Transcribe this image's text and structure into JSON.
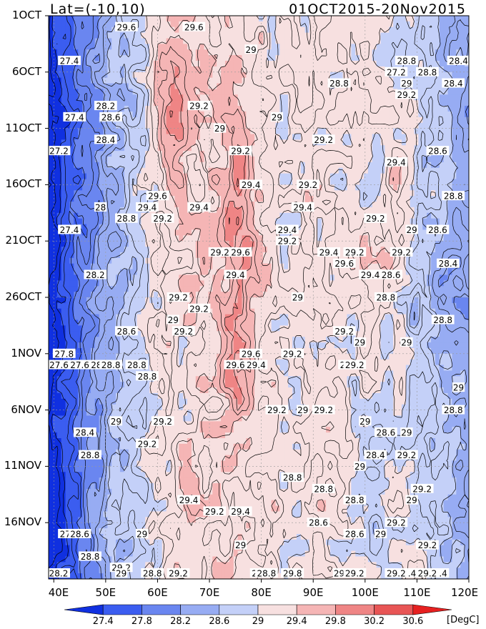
{
  "chart_data": {
    "type": "heatmap",
    "title_left": "Lat=(-10,10)",
    "title_right": "01OCT2015-20Nov2015",
    "x_ticks": [
      "40E",
      "50E",
      "60E",
      "70E",
      "80E",
      "90E",
      "100E",
      "110E",
      "120E"
    ],
    "y_ticks": [
      "1OCT",
      "6OCT",
      "11OCT",
      "16OCT",
      "21OCT",
      "26OCT",
      "1NOV",
      "6NOV",
      "11NOV",
      "16NOV"
    ],
    "xlim": [
      "39E",
      "120E"
    ],
    "ylim": [
      "01OCT2015",
      "20NOV2015"
    ],
    "colorbar": {
      "levels": [
        "27.4",
        "27.8",
        "28.2",
        "28.6",
        "29",
        "29.4",
        "29.8",
        "30.2",
        "30.6"
      ],
      "unit": "[DegC]",
      "colors": [
        "#1030e0",
        "#3b5df0",
        "#6a86f0",
        "#97acf3",
        "#c4d0f8",
        "#f7e0e0",
        "#f5b5b5",
        "#ef8585",
        "#e85555",
        "#e62020"
      ]
    },
    "contour_labels": [
      {
        "lon": 54,
        "day": 1,
        "text": "29.6"
      },
      {
        "lon": 67,
        "day": 1,
        "text": "29.6"
      },
      {
        "lon": 78,
        "day": 3,
        "text": "29"
      },
      {
        "lon": 43,
        "day": 4,
        "text": "27.4"
      },
      {
        "lon": 108,
        "day": 4,
        "text": "28.8"
      },
      {
        "lon": 112,
        "day": 5,
        "text": "28.8"
      },
      {
        "lon": 118,
        "day": 4,
        "text": "28.4"
      },
      {
        "lon": 106,
        "day": 5,
        "text": "27.2"
      },
      {
        "lon": 95,
        "day": 6,
        "text": "28.8"
      },
      {
        "lon": 108,
        "day": 6,
        "text": "29"
      },
      {
        "lon": 117,
        "day": 6,
        "text": "28.4"
      },
      {
        "lon": 108,
        "day": 7,
        "text": "29.2"
      },
      {
        "lon": 50,
        "day": 8,
        "text": "28.2"
      },
      {
        "lon": 68,
        "day": 8,
        "text": "29.2"
      },
      {
        "lon": 44,
        "day": 9,
        "text": "27.4"
      },
      {
        "lon": 51,
        "day": 9,
        "text": "28.6"
      },
      {
        "lon": 83,
        "day": 9,
        "text": "29"
      },
      {
        "lon": 72,
        "day": 10,
        "text": "29"
      },
      {
        "lon": 50,
        "day": 11,
        "text": "28.4"
      },
      {
        "lon": 92,
        "day": 11,
        "text": "29.2"
      },
      {
        "lon": 41,
        "day": 12,
        "text": "27.2"
      },
      {
        "lon": 76,
        "day": 12,
        "text": "29.2"
      },
      {
        "lon": 114,
        "day": 12,
        "text": "28.6"
      },
      {
        "lon": 106,
        "day": 13,
        "text": "29.4"
      },
      {
        "lon": 89,
        "day": 15,
        "text": "29.2"
      },
      {
        "lon": 78,
        "day": 15,
        "text": "29.4"
      },
      {
        "lon": 60,
        "day": 16,
        "text": "29.6"
      },
      {
        "lon": 117,
        "day": 16,
        "text": "28.8"
      },
      {
        "lon": 49,
        "day": 17,
        "text": "28"
      },
      {
        "lon": 88,
        "day": 17,
        "text": "29.4"
      },
      {
        "lon": 58,
        "day": 17,
        "text": "29.4"
      },
      {
        "lon": 68,
        "day": 17,
        "text": "29.4"
      },
      {
        "lon": 54,
        "day": 18,
        "text": "28.8"
      },
      {
        "lon": 102,
        "day": 18,
        "text": "29.2"
      },
      {
        "lon": 61,
        "day": 18,
        "text": "29.2"
      },
      {
        "lon": 43,
        "day": 19,
        "text": "27.4"
      },
      {
        "lon": 85,
        "day": 19,
        "text": "29.4"
      },
      {
        "lon": 114,
        "day": 19,
        "text": "28.6"
      },
      {
        "lon": 109,
        "day": 19,
        "text": "29"
      },
      {
        "lon": 85,
        "day": 20,
        "text": "29.2"
      },
      {
        "lon": 72,
        "day": 21,
        "text": "29.2"
      },
      {
        "lon": 76,
        "day": 21,
        "text": "29.6"
      },
      {
        "lon": 93,
        "day": 21,
        "text": "29.4"
      },
      {
        "lon": 98,
        "day": 21,
        "text": "29.2"
      },
      {
        "lon": 107,
        "day": 21,
        "text": "29.2"
      },
      {
        "lon": 96,
        "day": 22,
        "text": "29.6"
      },
      {
        "lon": 116,
        "day": 22,
        "text": "28.4"
      },
      {
        "lon": 48,
        "day": 23,
        "text": "28.2"
      },
      {
        "lon": 75,
        "day": 23,
        "text": "29.4"
      },
      {
        "lon": 101,
        "day": 23,
        "text": "29.4"
      },
      {
        "lon": 105,
        "day": 23,
        "text": "28.6"
      },
      {
        "lon": 64,
        "day": 25,
        "text": "29.2"
      },
      {
        "lon": 68,
        "day": 26,
        "text": "29.2"
      },
      {
        "lon": 87,
        "day": 25,
        "text": "29"
      },
      {
        "lon": 104,
        "day": 25,
        "text": "28.8"
      },
      {
        "lon": 115,
        "day": 27,
        "text": "28.8"
      },
      {
        "lon": 63,
        "day": 27,
        "text": "29"
      },
      {
        "lon": 54,
        "day": 28,
        "text": "28.6"
      },
      {
        "lon": 65,
        "day": 28,
        "text": "29.2"
      },
      {
        "lon": 96,
        "day": 28,
        "text": "29.2"
      },
      {
        "lon": 99,
        "day": 29,
        "text": "29"
      },
      {
        "lon": 108,
        "day": 29,
        "text": "29"
      },
      {
        "lon": 78,
        "day": 30,
        "text": "29.6"
      },
      {
        "lon": 86,
        "day": 30,
        "text": "29.2"
      },
      {
        "lon": 42,
        "day": 30,
        "text": "27.8"
      },
      {
        "lon": 56,
        "day": 31,
        "text": "28.8"
      },
      {
        "lon": 97,
        "day": 31,
        "text": "28.8"
      },
      {
        "lon": 41,
        "day": 31,
        "text": "27.6"
      },
      {
        "lon": 45,
        "day": 31,
        "text": "27.6"
      },
      {
        "lon": 49,
        "day": 31,
        "text": "28.6"
      },
      {
        "lon": 51,
        "day": 31,
        "text": "28.8"
      },
      {
        "lon": 79,
        "day": 31,
        "text": "29.4"
      },
      {
        "lon": 75,
        "day": 31,
        "text": "29.6"
      },
      {
        "lon": 98,
        "day": 31,
        "text": "29.2"
      },
      {
        "lon": 58,
        "day": 32,
        "text": "28.8"
      },
      {
        "lon": 118,
        "day": 33,
        "text": "29"
      },
      {
        "lon": 83,
        "day": 35,
        "text": "29.2"
      },
      {
        "lon": 88,
        "day": 35,
        "text": "29"
      },
      {
        "lon": 92,
        "day": 35,
        "text": "29.2"
      },
      {
        "lon": 117,
        "day": 35,
        "text": "28.8"
      },
      {
        "lon": 61,
        "day": 36,
        "text": "29.2"
      },
      {
        "lon": 52,
        "day": 36,
        "text": "29"
      },
      {
        "lon": 100,
        "day": 36,
        "text": "29"
      },
      {
        "lon": 104,
        "day": 37,
        "text": "28.6"
      },
      {
        "lon": 108,
        "day": 37,
        "text": "29"
      },
      {
        "lon": 46,
        "day": 37,
        "text": "28.4"
      },
      {
        "lon": 58,
        "day": 38,
        "text": "29.2"
      },
      {
        "lon": 47,
        "day": 39,
        "text": "28.8"
      },
      {
        "lon": 102,
        "day": 39,
        "text": "28.4"
      },
      {
        "lon": 108,
        "day": 39,
        "text": "29.2"
      },
      {
        "lon": 99,
        "day": 40,
        "text": "29"
      },
      {
        "lon": 86,
        "day": 41,
        "text": "28.8"
      },
      {
        "lon": 92,
        "day": 42,
        "text": "28.8"
      },
      {
        "lon": 111,
        "day": 42,
        "text": "29.2"
      },
      {
        "lon": 66,
        "day": 43,
        "text": "29.4"
      },
      {
        "lon": 71,
        "day": 44,
        "text": "29.2"
      },
      {
        "lon": 76,
        "day": 44,
        "text": "29.4"
      },
      {
        "lon": 98,
        "day": 43,
        "text": "28.8"
      },
      {
        "lon": 109,
        "day": 43,
        "text": "29"
      },
      {
        "lon": 106,
        "day": 45,
        "text": "29.2"
      },
      {
        "lon": 91,
        "day": 45,
        "text": "28.6"
      },
      {
        "lon": 43,
        "day": 46,
        "text": "27.6"
      },
      {
        "lon": 45,
        "day": 46,
        "text": "28.6"
      },
      {
        "lon": 57,
        "day": 46,
        "text": "29"
      },
      {
        "lon": 98,
        "day": 46,
        "text": "28.6"
      },
      {
        "lon": 103,
        "day": 46,
        "text": "29"
      },
      {
        "lon": 112,
        "day": 47,
        "text": "29.2"
      },
      {
        "lon": 76,
        "day": 47,
        "text": "29"
      },
      {
        "lon": 47,
        "day": 48,
        "text": "28.8"
      },
      {
        "lon": 53,
        "day": 49,
        "text": "29.2"
      },
      {
        "lon": 86,
        "day": 50,
        "text": "28.6"
      },
      {
        "lon": 95,
        "day": 50,
        "text": "29"
      },
      {
        "lon": 108,
        "day": 51,
        "text": "29.4"
      },
      {
        "lon": 114,
        "day": 51,
        "text": "29.4"
      },
      {
        "lon": 112,
        "day": 51,
        "text": "29.2"
      },
      {
        "lon": 64,
        "day": 52,
        "text": "29.2"
      },
      {
        "lon": 86,
        "day": 52,
        "text": "29.8"
      },
      {
        "lon": 40,
        "day": 53,
        "text": "27.8"
      },
      {
        "lon": 53,
        "day": 53,
        "text": "29"
      },
      {
        "lon": 59,
        "day": 54,
        "text": "29"
      },
      {
        "lon": 59,
        "day": 55,
        "text": "28.8"
      },
      {
        "lon": 99,
        "day": 55,
        "text": "29"
      },
      {
        "lon": 80,
        "day": 55,
        "text": "28.6"
      },
      {
        "lon": 81,
        "day": 56,
        "text": "28.8"
      },
      {
        "lon": 106,
        "day": 57,
        "text": "29.2"
      },
      {
        "lon": 40,
        "day": 58,
        "text": "28.2"
      },
      {
        "lon": 98,
        "day": 59,
        "text": "29.2"
      }
    ]
  }
}
